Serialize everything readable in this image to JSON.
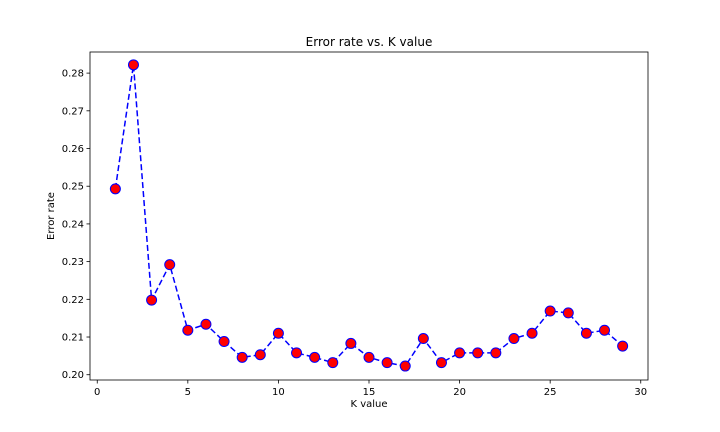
{
  "chart_data": {
    "type": "line",
    "title": "Error rate vs. K value",
    "xlabel": "K value",
    "ylabel": "Error rate",
    "xlim": [
      -0.4,
      30.4
    ],
    "ylim": [
      0.1986,
      0.2856
    ],
    "x_ticks": [
      0,
      5,
      10,
      15,
      20,
      25,
      30
    ],
    "y_ticks": [
      0.2,
      0.21,
      0.22,
      0.23,
      0.24,
      0.25,
      0.26,
      0.27,
      0.28
    ],
    "y_tick_labels": [
      "0.20",
      "0.21",
      "0.22",
      "0.23",
      "0.24",
      "0.25",
      "0.26",
      "0.27",
      "0.28"
    ],
    "grid": false,
    "series": [
      {
        "line_color": "#0000ff",
        "line_style": "dashed",
        "marker": "circle",
        "marker_face_color": "#ff0000",
        "marker_edge_color": "#0000ff",
        "x": [
          1,
          2,
          3,
          4,
          5,
          6,
          7,
          8,
          9,
          10,
          11,
          12,
          13,
          14,
          15,
          16,
          17,
          18,
          19,
          20,
          21,
          22,
          23,
          24,
          25,
          26,
          27,
          28,
          29
        ],
        "y": [
          0.2493,
          0.2822,
          0.2198,
          0.2292,
          0.2118,
          0.2134,
          0.2088,
          0.2046,
          0.2053,
          0.211,
          0.2058,
          0.2046,
          0.2032,
          0.2083,
          0.2046,
          0.2032,
          0.2023,
          0.2096,
          0.2032,
          0.2058,
          0.2058,
          0.2058,
          0.2096,
          0.211,
          0.2169,
          0.2164,
          0.211,
          0.2118,
          0.2076
        ]
      }
    ]
  }
}
